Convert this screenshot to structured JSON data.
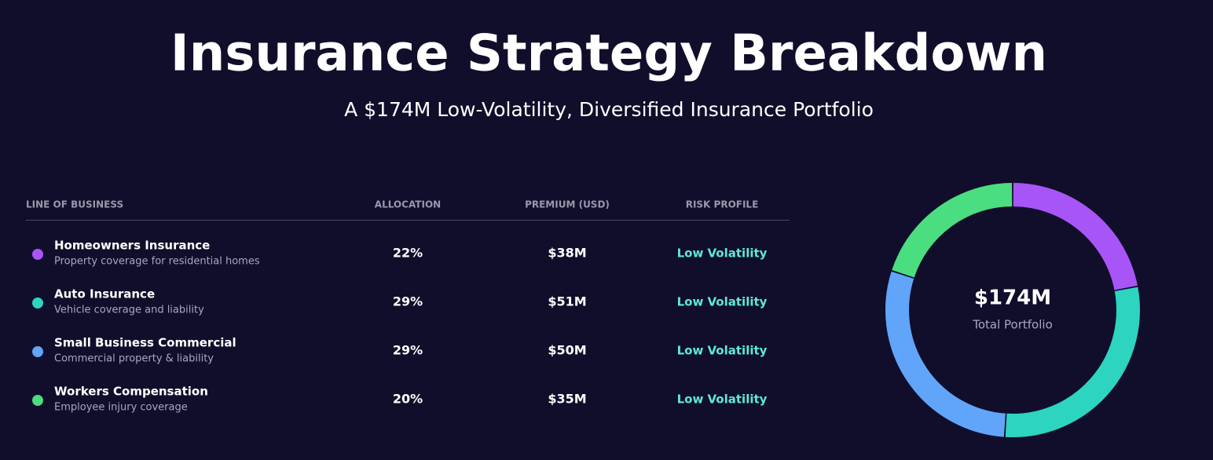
{
  "header": {
    "title": "Insurance Strategy Breakdown",
    "subtitle": "A $174M Low-Volatility, Diversified Insurance Portfolio"
  },
  "table": {
    "columns": [
      "LINE OF BUSINESS",
      "ALLOCATION",
      "PREMIUM (USD)",
      "RISK PROFILE"
    ],
    "rows": [
      {
        "description": "Property coverage for residential homes",
        "premium": "$38M",
        "risk": "Low Volatility"
      },
      {
        "description": "Vehicle coverage and liability",
        "premium": "$51M",
        "risk": "Low Volatility"
      },
      {
        "description": "Commercial property & liability",
        "premium": "$50M",
        "risk": "Low Volatility"
      },
      {
        "description": "Employee injury coverage",
        "premium": "$35M",
        "risk": "Low Volatility"
      }
    ]
  },
  "chart_data": {
    "type": "donut",
    "categories": [
      "Homeowners Insurance",
      "Auto Insurance",
      "Small Business Commercial",
      "Workers Compensation"
    ],
    "values": [
      22,
      29,
      29,
      20
    ],
    "value_labels": [
      "22%",
      "29%",
      "29%",
      "20%"
    ],
    "colors": [
      "#a855f7",
      "#2dd4bf",
      "#60a5fa",
      "#4ade80"
    ],
    "center_value": "$174M",
    "center_label": "Total Portfolio"
  }
}
